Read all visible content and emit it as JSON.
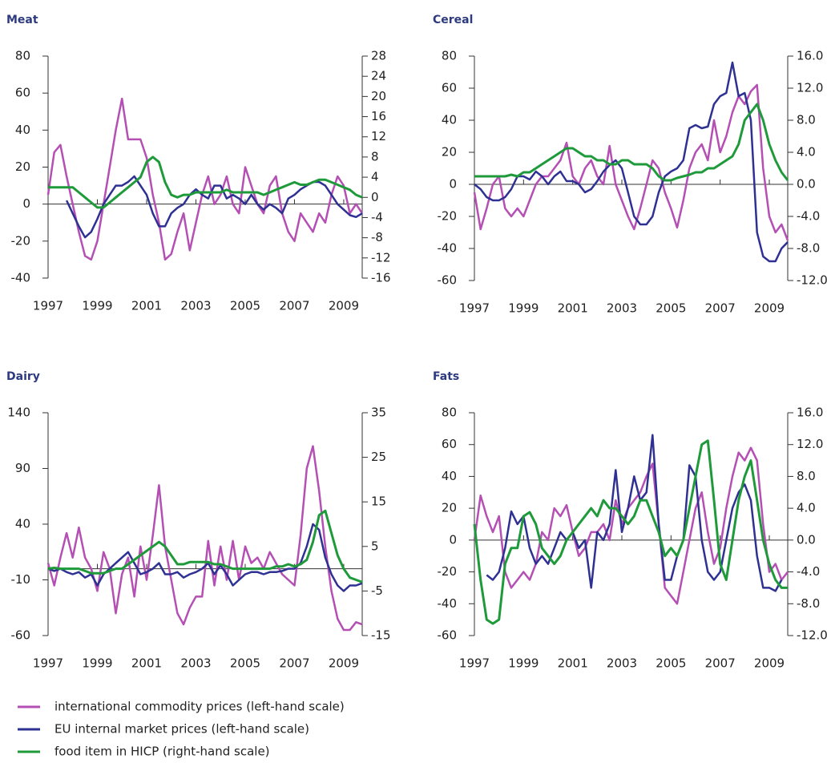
{
  "chart_data": [
    {
      "type": "line",
      "title": "Meat",
      "x": [
        1997,
        1997.25,
        1997.5,
        1997.75,
        1998,
        1998.25,
        1998.5,
        1998.75,
        1999,
        1999.25,
        1999.5,
        1999.75,
        2000,
        2000.25,
        2000.5,
        2000.75,
        2001,
        2001.25,
        2001.5,
        2001.75,
        2002,
        2002.25,
        2002.5,
        2002.75,
        2003,
        2003.25,
        2003.5,
        2003.75,
        2004,
        2004.25,
        2004.5,
        2004.75,
        2005,
        2005.25,
        2005.5,
        2005.75,
        2006,
        2006.25,
        2006.5,
        2006.75,
        2007,
        2007.25,
        2007.5,
        2007.75,
        2008,
        2008.25,
        2008.5,
        2008.75,
        2009,
        2009.25,
        2009.5,
        2009.75
      ],
      "xlim": [
        1997,
        2009.75
      ],
      "xticks": [
        1997,
        1999,
        2001,
        2003,
        2005,
        2007,
        2009
      ],
      "ylim": [
        -40,
        80
      ],
      "yticks": [
        80,
        60,
        40,
        20,
        0,
        -20,
        -40
      ],
      "y2lim": [
        -16,
        28
      ],
      "y2ticks": [
        28,
        24,
        20,
        16,
        12,
        8,
        4,
        0,
        -4,
        -8,
        -12,
        -16
      ],
      "series": [
        {
          "name": "international commodity prices (left-hand scale)",
          "color": "#b44fb4",
          "values": [
            5,
            28,
            32,
            15,
            0,
            -15,
            -28,
            -30,
            -20,
            0,
            20,
            40,
            57,
            35,
            35,
            35,
            25,
            5,
            -10,
            -30,
            -27,
            -15,
            -5,
            -25,
            -10,
            5,
            15,
            0,
            5,
            15,
            0,
            -5,
            20,
            10,
            0,
            -5,
            10,
            15,
            -5,
            -15,
            -20,
            -5,
            -10,
            -15,
            -5,
            -10,
            5,
            15,
            10,
            -5,
            0,
            -5
          ]
        },
        {
          "name": "EU internal market prices (left-hand scale)",
          "color": "#2e3192",
          "values": [
            null,
            null,
            null,
            2,
            -5,
            -12,
            -18,
            -15,
            -8,
            0,
            5,
            10,
            10,
            12,
            15,
            10,
            5,
            -5,
            -12,
            -12,
            -5,
            -2,
            0,
            5,
            8,
            5,
            3,
            10,
            10,
            3,
            5,
            3,
            0,
            5,
            0,
            -3,
            0,
            -2,
            -5,
            3,
            5,
            8,
            10,
            12,
            12,
            10,
            5,
            0,
            -3,
            -6,
            -7,
            -5
          ]
        },
        {
          "name": "food item in HICP (right-hand scale)",
          "color": "#1f9a3a",
          "axis": "y2",
          "values": [
            2,
            2,
            2,
            2,
            2,
            1,
            0,
            -1,
            -2,
            -2,
            -1,
            0,
            1,
            2,
            3,
            4,
            7,
            8,
            7,
            3,
            0.5,
            0,
            0.5,
            0.5,
            1,
            1,
            1,
            1,
            1,
            1.5,
            1,
            1,
            1,
            1,
            1,
            0.5,
            1,
            1.5,
            2,
            2.5,
            3,
            2.5,
            2.5,
            3,
            3.5,
            3.5,
            3,
            2.5,
            2,
            1.5,
            0.5,
            0
          ]
        }
      ]
    },
    {
      "type": "line",
      "title": "Cereal",
      "x": [
        1997,
        1997.25,
        1997.5,
        1997.75,
        1998,
        1998.25,
        1998.5,
        1998.75,
        1999,
        1999.25,
        1999.5,
        1999.75,
        2000,
        2000.25,
        2000.5,
        2000.75,
        2001,
        2001.25,
        2001.5,
        2001.75,
        2002,
        2002.25,
        2002.5,
        2002.75,
        2003,
        2003.25,
        2003.5,
        2003.75,
        2004,
        2004.25,
        2004.5,
        2004.75,
        2005,
        2005.25,
        2005.5,
        2005.75,
        2006,
        2006.25,
        2006.5,
        2006.75,
        2007,
        2007.25,
        2007.5,
        2007.75,
        2008,
        2008.25,
        2008.5,
        2008.75,
        2009,
        2009.25,
        2009.5,
        2009.75
      ],
      "xlim": [
        1997,
        2009.75
      ],
      "xticks": [
        1997,
        1999,
        2001,
        2003,
        2005,
        2007,
        2009
      ],
      "ylim": [
        -60,
        80
      ],
      "yticks": [
        80,
        60,
        40,
        20,
        0,
        -20,
        -40,
        -60
      ],
      "y2lim": [
        -12,
        16
      ],
      "y2ticks": [
        {
          "value": 16,
          "label": "16.0"
        },
        {
          "value": 12,
          "label": "12.0"
        },
        {
          "value": 8,
          "label": "8.0"
        },
        {
          "value": 4,
          "label": "4.0"
        },
        {
          "value": 0,
          "label": "0.0"
        },
        {
          "value": -4,
          "label": "-4.0"
        },
        {
          "value": -8,
          "label": "-8.0"
        },
        {
          "value": -12,
          "label": "-12.0"
        }
      ],
      "series": [
        {
          "name": "international commodity prices (left-hand scale)",
          "color": "#b44fb4",
          "values": [
            -5,
            -28,
            -15,
            0,
            5,
            -15,
            -20,
            -15,
            -20,
            -10,
            0,
            5,
            5,
            10,
            15,
            26,
            5,
            0,
            10,
            15,
            5,
            0,
            24,
            0,
            -10,
            -20,
            -28,
            -15,
            0,
            15,
            10,
            -5,
            -15,
            -27,
            -10,
            10,
            20,
            25,
            15,
            40,
            20,
            30,
            45,
            55,
            50,
            58,
            62,
            10,
            -20,
            -30,
            -25,
            -35
          ]
        },
        {
          "name": "EU internal market prices (left-hand scale)",
          "color": "#2e3192",
          "values": [
            0,
            -3,
            -8,
            -10,
            -10,
            -8,
            -3,
            5,
            5,
            3,
            8,
            5,
            0,
            5,
            8,
            2,
            2,
            0,
            -5,
            -3,
            2,
            8,
            12,
            15,
            10,
            -5,
            -20,
            -25,
            -25,
            -20,
            -5,
            5,
            8,
            10,
            15,
            35,
            37,
            35,
            36,
            50,
            55,
            57,
            76,
            55,
            57,
            40,
            -30,
            -45,
            -48,
            -48,
            -40,
            -36
          ]
        },
        {
          "name": "food item in HICP (right-hand scale)",
          "color": "#1f9a3a",
          "axis": "y2",
          "values": [
            1,
            1,
            1,
            1,
            1,
            1,
            1.2,
            1,
            1.5,
            1.5,
            2,
            2.5,
            3,
            3.5,
            4,
            4.5,
            4.5,
            4,
            3.5,
            3.5,
            3,
            3,
            2.5,
            2.5,
            3,
            3,
            2.5,
            2.5,
            2.5,
            2,
            1,
            0.5,
            0.5,
            0.8,
            1,
            1.2,
            1.5,
            1.5,
            2,
            2,
            2.5,
            3,
            3.5,
            5,
            8,
            9,
            10,
            8,
            5,
            3,
            1.5,
            0.5
          ]
        }
      ]
    },
    {
      "type": "line",
      "title": "Dairy",
      "x": [
        1997,
        1997.25,
        1997.5,
        1997.75,
        1998,
        1998.25,
        1998.5,
        1998.75,
        1999,
        1999.25,
        1999.5,
        1999.75,
        2000,
        2000.25,
        2000.5,
        2000.75,
        2001,
        2001.25,
        2001.5,
        2001.75,
        2002,
        2002.25,
        2002.5,
        2002.75,
        2003,
        2003.25,
        2003.5,
        2003.75,
        2004,
        2004.25,
        2004.5,
        2004.75,
        2005,
        2005.25,
        2005.5,
        2005.75,
        2006,
        2006.25,
        2006.5,
        2006.75,
        2007,
        2007.25,
        2007.5,
        2007.75,
        2008,
        2008.25,
        2008.5,
        2008.75,
        2009,
        2009.25,
        2009.5,
        2009.75
      ],
      "xlim": [
        1997,
        2009.75
      ],
      "xticks": [
        1997,
        1999,
        2001,
        2003,
        2005,
        2007,
        2009
      ],
      "ylim": [
        -60,
        140
      ],
      "yticks": [
        140,
        90,
        40,
        -10,
        -60
      ],
      "y2lim": [
        -15,
        35
      ],
      "y2ticks": [
        35,
        25,
        15,
        5,
        -5,
        -15
      ],
      "series": [
        {
          "name": "international commodity prices (left-hand scale)",
          "color": "#b44fb4",
          "values": [
            5,
            -15,
            10,
            32,
            10,
            37,
            10,
            0,
            -20,
            15,
            0,
            -40,
            -5,
            10,
            -25,
            20,
            -10,
            30,
            75,
            20,
            -10,
            -40,
            -50,
            -35,
            -25,
            -25,
            25,
            -15,
            20,
            -10,
            25,
            -10,
            20,
            5,
            10,
            0,
            15,
            5,
            -5,
            -10,
            -15,
            30,
            90,
            110,
            70,
            20,
            -20,
            -45,
            -55,
            -55,
            -48,
            -50
          ]
        },
        {
          "name": "EU internal market prices (left-hand scale)",
          "color": "#2e3192",
          "values": [
            0,
            -2,
            0,
            -3,
            -5,
            -3,
            -8,
            -5,
            -15,
            -5,
            0,
            5,
            10,
            15,
            5,
            -5,
            -3,
            0,
            5,
            -5,
            -5,
            -3,
            -8,
            -5,
            -3,
            0,
            5,
            -5,
            3,
            -5,
            -15,
            -10,
            -5,
            -3,
            -3,
            -5,
            -3,
            -3,
            -2,
            0,
            0,
            5,
            20,
            40,
            35,
            10,
            -5,
            -15,
            -20,
            -15,
            -15,
            -13
          ]
        },
        {
          "name": "food item in HICP (right-hand scale)",
          "color": "#1f9a3a",
          "axis": "y2",
          "values": [
            0,
            0.2,
            0,
            0,
            0,
            0,
            -0.5,
            -1,
            -1,
            -1,
            -0.5,
            0,
            0,
            1,
            2,
            3,
            4,
            5,
            6,
            5,
            3,
            1,
            1,
            1.5,
            1.5,
            1.5,
            1.5,
            1,
            1,
            0.5,
            0,
            0,
            0,
            0,
            0,
            0,
            0,
            0.5,
            0.5,
            1,
            0.5,
            1,
            2,
            6,
            12,
            13,
            8,
            3,
            0,
            -2,
            -2.5,
            -3
          ]
        }
      ]
    },
    {
      "type": "line",
      "title": "Fats",
      "x": [
        1997,
        1997.25,
        1997.5,
        1997.75,
        1998,
        1998.25,
        1998.5,
        1998.75,
        1999,
        1999.25,
        1999.5,
        1999.75,
        2000,
        2000.25,
        2000.5,
        2000.75,
        2001,
        2001.25,
        2001.5,
        2001.75,
        2002,
        2002.25,
        2002.5,
        2002.75,
        2003,
        2003.25,
        2003.5,
        2003.75,
        2004,
        2004.25,
        2004.5,
        2004.75,
        2005,
        2005.25,
        2005.5,
        2005.75,
        2006,
        2006.25,
        2006.5,
        2006.75,
        2007,
        2007.25,
        2007.5,
        2007.75,
        2008,
        2008.25,
        2008.5,
        2008.75,
        2009,
        2009.25,
        2009.5,
        2009.75
      ],
      "xlim": [
        1997,
        2009.75
      ],
      "xticks": [
        1997,
        1999,
        2001,
        2003,
        2005,
        2007,
        2009
      ],
      "ylim": [
        -60,
        80
      ],
      "yticks": [
        80,
        60,
        40,
        20,
        0,
        -20,
        -40,
        -60
      ],
      "y2lim": [
        -12,
        16
      ],
      "y2ticks": [
        {
          "value": 16,
          "label": "16.0"
        },
        {
          "value": 12,
          "label": "12.0"
        },
        {
          "value": 8,
          "label": "8.0"
        },
        {
          "value": 4,
          "label": "4.0"
        },
        {
          "value": 0,
          "label": "0.0"
        },
        {
          "value": -4,
          "label": "-4.0"
        },
        {
          "value": -8,
          "label": "-8.0"
        },
        {
          "value": -12,
          "label": "-12.0"
        }
      ],
      "series": [
        {
          "name": "international commodity prices (left-hand scale)",
          "color": "#b44fb4",
          "values": [
            0,
            28,
            15,
            5,
            15,
            -20,
            -30,
            -25,
            -20,
            -25,
            -15,
            5,
            0,
            20,
            15,
            22,
            5,
            -10,
            -5,
            5,
            5,
            10,
            0,
            25,
            10,
            20,
            25,
            30,
            40,
            48,
            10,
            -30,
            -35,
            -40,
            -20,
            0,
            20,
            30,
            5,
            -15,
            -5,
            20,
            40,
            55,
            50,
            58,
            50,
            10,
            -20,
            -15,
            -25,
            -20
          ]
        },
        {
          "name": "EU internal market prices (left-hand scale)",
          "color": "#2e3192",
          "values": [
            null,
            null,
            -22,
            -25,
            -20,
            -5,
            18,
            10,
            15,
            -5,
            -15,
            -10,
            -15,
            -5,
            5,
            0,
            5,
            -5,
            0,
            -30,
            5,
            0,
            10,
            44,
            5,
            20,
            40,
            25,
            30,
            66,
            10,
            -25,
            -25,
            -10,
            0,
            47,
            40,
            0,
            -20,
            -25,
            -20,
            0,
            20,
            30,
            35,
            25,
            -10,
            -30,
            -30,
            -32,
            -25,
            null
          ]
        },
        {
          "name": "food item in HICP (right-hand scale)",
          "color": "#1f9a3a",
          "axis": "y2",
          "values": [
            2,
            -5,
            -10,
            -10.5,
            -10,
            -3,
            -1,
            -1,
            3,
            3.5,
            2,
            -1,
            -2,
            -3,
            -2,
            0,
            1,
            2,
            3,
            4,
            3,
            5,
            4,
            4,
            3,
            2,
            3,
            5,
            5,
            3,
            1,
            -2,
            -1,
            -2,
            0,
            4,
            8,
            12,
            12.5,
            5,
            -3,
            -5,
            0,
            5,
            8,
            10,
            5,
            0,
            -3,
            -5,
            -6,
            -6
          ]
        }
      ]
    }
  ]
}
